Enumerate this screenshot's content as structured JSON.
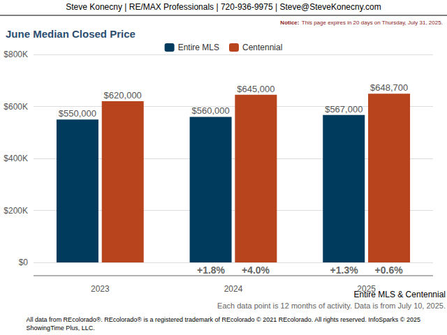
{
  "chart_data": {
    "type": "bar",
    "title": "June Median Closed Price",
    "categories": [
      "2023",
      "2024",
      "2025"
    ],
    "series": [
      {
        "name": "Entire MLS",
        "color": "#003a5c",
        "values": [
          550000,
          560000,
          567000
        ],
        "value_labels": [
          "$550,000",
          "$560,000",
          "$567,000"
        ],
        "change_labels": [
          null,
          "+1.8%",
          "+1.3%"
        ]
      },
      {
        "name": "Centennial",
        "color": "#b8441d",
        "values": [
          620000,
          645000,
          648700
        ],
        "value_labels": [
          "$620,000",
          "$645,000",
          "$648,700"
        ],
        "change_labels": [
          null,
          "+4.0%",
          "+0.6%"
        ]
      }
    ],
    "ylim": [
      0,
      800000
    ],
    "yticks": [
      {
        "value": 0,
        "label": "$0"
      },
      {
        "value": 200000,
        "label": "$200K"
      },
      {
        "value": 400000,
        "label": "$400K"
      },
      {
        "value": 600000,
        "label": "$600K"
      },
      {
        "value": 800000,
        "label": "$800K"
      }
    ],
    "grid": true,
    "legend": "top",
    "data_labels": true,
    "annotations": {
      "header": "Steve Konecny | RE/MAX Professionals | 720-936-9975 | Steve@SteveKonecny.com",
      "notice_label": "Notice:",
      "notice": "This page expires in 20 days on Thursday, July 31, 2025.",
      "series_joiner": "&",
      "note": "Each data point is 12 months of activity. Data is from July 10, 2025.",
      "footer": [
        "All data from REcolorado®. REcolorado® is a registered trademark of REcolorado © 2021 REcolorado. All rights reserved. InfoSparks © 2025",
        "ShowingTime Plus, LLC."
      ]
    }
  }
}
